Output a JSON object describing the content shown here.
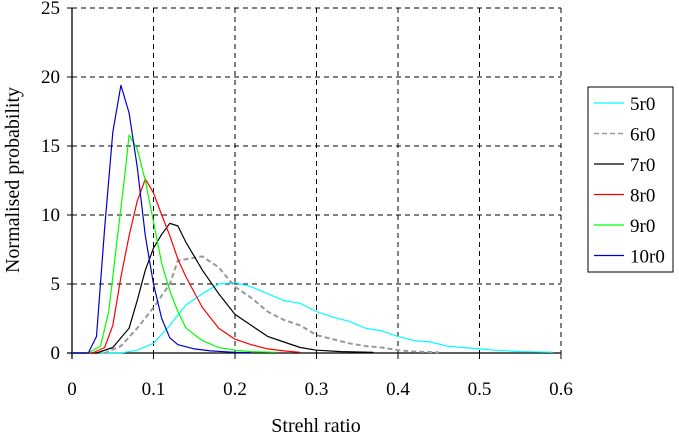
{
  "chart_data": {
    "type": "line",
    "title": "",
    "xlabel": "Strehl ratio",
    "ylabel": "Normalised probability",
    "xlim": [
      0,
      0.6
    ],
    "ylim": [
      0,
      25
    ],
    "x_ticks": [
      "0",
      "0.1",
      "0.2",
      "0.3",
      "0.4",
      "0.5",
      "0.6"
    ],
    "y_ticks": [
      "0",
      "5",
      "10",
      "15",
      "20",
      "25"
    ],
    "grid": true,
    "legend_position": "right",
    "series": [
      {
        "name": "5r0",
        "color": "#00ffff",
        "dash": false,
        "x": [
          0,
          0.06,
          0.08,
          0.1,
          0.12,
          0.14,
          0.16,
          0.18,
          0.2,
          0.22,
          0.24,
          0.26,
          0.28,
          0.3,
          0.32,
          0.34,
          0.36,
          0.38,
          0.4,
          0.42,
          0.44,
          0.46,
          0.48,
          0.5,
          0.52,
          0.55,
          0.59
        ],
        "values": [
          0,
          0,
          0.2,
          0.7,
          2.0,
          3.5,
          4.3,
          5.0,
          5.1,
          4.8,
          4.3,
          3.8,
          3.6,
          3.0,
          2.6,
          2.3,
          1.8,
          1.6,
          1.2,
          0.9,
          0.8,
          0.5,
          0.4,
          0.3,
          0.2,
          0.1,
          0.05
        ]
      },
      {
        "name": "6r0",
        "color": "#999999",
        "dash": true,
        "x": [
          0,
          0.04,
          0.06,
          0.08,
          0.1,
          0.12,
          0.13,
          0.14,
          0.16,
          0.18,
          0.2,
          0.22,
          0.24,
          0.26,
          0.28,
          0.3,
          0.32,
          0.34,
          0.36,
          0.38,
          0.4,
          0.42,
          0.45
        ],
        "values": [
          0,
          0,
          0.5,
          1.8,
          3.3,
          5.0,
          6.7,
          6.8,
          7.0,
          6.2,
          4.8,
          4.0,
          3.0,
          2.4,
          2.0,
          1.3,
          1.0,
          0.7,
          0.5,
          0.4,
          0.2,
          0.1,
          0.05
        ]
      },
      {
        "name": "7r0",
        "color": "#000000",
        "dash": false,
        "x": [
          0,
          0.03,
          0.05,
          0.07,
          0.08,
          0.09,
          0.1,
          0.11,
          0.12,
          0.13,
          0.14,
          0.15,
          0.16,
          0.18,
          0.2,
          0.22,
          0.24,
          0.26,
          0.28,
          0.3,
          0.33,
          0.37
        ],
        "values": [
          0,
          0,
          0.4,
          1.8,
          3.8,
          6.0,
          7.6,
          8.6,
          9.4,
          9.2,
          8.0,
          7.0,
          6.0,
          4.3,
          2.8,
          2.0,
          1.2,
          0.8,
          0.4,
          0.2,
          0.1,
          0.05
        ]
      },
      {
        "name": "8r0",
        "color": "#ff0000",
        "dash": false,
        "x": [
          0,
          0.025,
          0.04,
          0.05,
          0.06,
          0.07,
          0.08,
          0.09,
          0.1,
          0.11,
          0.12,
          0.13,
          0.14,
          0.16,
          0.18,
          0.2,
          0.22,
          0.24,
          0.26,
          0.28
        ],
        "values": [
          0,
          0,
          0.4,
          2.0,
          5.5,
          8.5,
          11.0,
          12.6,
          11.6,
          10.0,
          8.5,
          6.8,
          5.5,
          3.3,
          1.8,
          1.0,
          0.6,
          0.3,
          0.15,
          0.05
        ]
      },
      {
        "name": "9r0",
        "color": "#00ff00",
        "dash": false,
        "x": [
          0,
          0.02,
          0.035,
          0.045,
          0.055,
          0.065,
          0.07,
          0.08,
          0.09,
          0.1,
          0.11,
          0.12,
          0.13,
          0.14,
          0.16,
          0.18,
          0.2,
          0.22,
          0.25
        ],
        "values": [
          0,
          0,
          0.5,
          3.0,
          8.0,
          13.0,
          15.8,
          14.8,
          12.5,
          9.5,
          6.5,
          4.5,
          3.0,
          1.8,
          0.9,
          0.4,
          0.2,
          0.1,
          0.05
        ]
      },
      {
        "name": "10r0",
        "color": "#0000cc",
        "dash": false,
        "x": [
          0,
          0.02,
          0.03,
          0.04,
          0.05,
          0.06,
          0.07,
          0.08,
          0.09,
          0.1,
          0.11,
          0.12,
          0.13,
          0.15,
          0.17,
          0.2,
          0.22
        ],
        "values": [
          0,
          0,
          1.2,
          9.0,
          16.0,
          19.4,
          17.4,
          13.5,
          8.5,
          5.0,
          2.5,
          1.1,
          0.6,
          0.3,
          0.15,
          0.05,
          0.02
        ]
      }
    ]
  }
}
